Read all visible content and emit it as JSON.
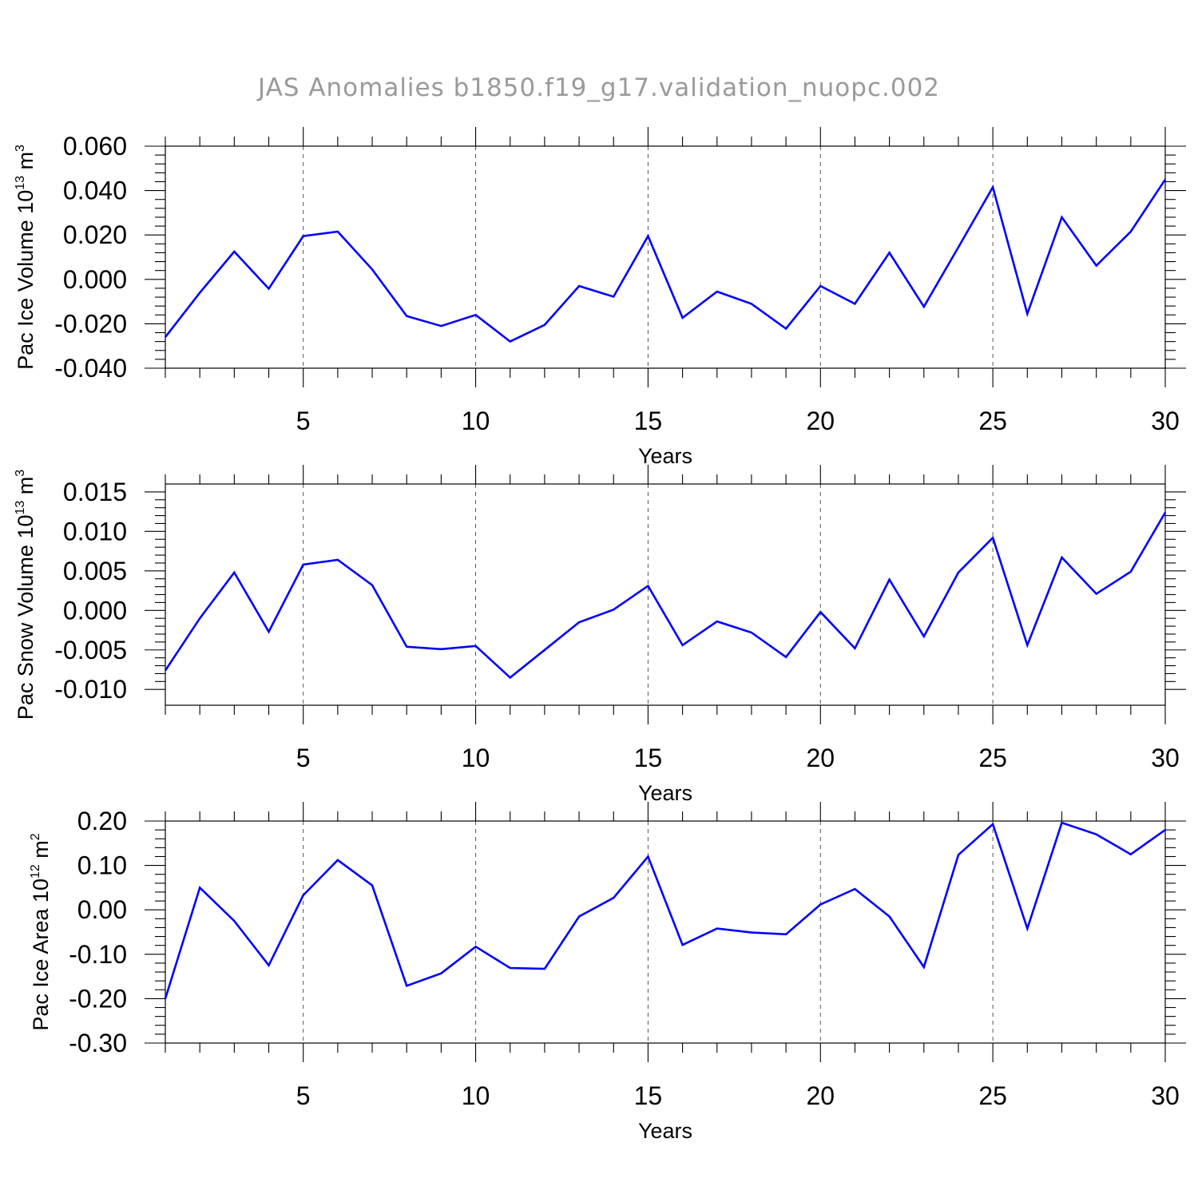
{
  "title": "JAS Anomalies b1850.f19_g17.validation_nuopc.002",
  "colors": {
    "series": "#0000ff",
    "axis": "#000000",
    "title": "#9a9a9a"
  },
  "chart_data": [
    {
      "type": "line",
      "xlabel": "Years",
      "ylabel": {
        "text": "Pac Ice Volume 10",
        "exp": "13",
        "unit": " m",
        "unit_exp": "3"
      },
      "xlim": [
        1,
        30
      ],
      "ylim": [
        -0.04,
        0.06
      ],
      "xticks": [
        5,
        10,
        15,
        20,
        25,
        30
      ],
      "xtick_labels": [
        "5",
        "10",
        "15",
        "20",
        "25",
        "30"
      ],
      "yticks": [
        -0.04,
        -0.02,
        0.0,
        0.02,
        0.04,
        0.06
      ],
      "ytick_labels": [
        "-0.040",
        "-0.020",
        "0.000",
        "0.020",
        "0.040",
        "0.060"
      ],
      "x": [
        1,
        2,
        3,
        4,
        5,
        6,
        7,
        8,
        9,
        10,
        11,
        12,
        13,
        14,
        15,
        16,
        17,
        18,
        19,
        20,
        21,
        22,
        23,
        24,
        25,
        26,
        27,
        28,
        29,
        30
      ],
      "series": [
        {
          "name": "Pac Ice Volume",
          "values": [
            -0.026,
            -0.006,
            0.0125,
            -0.0042,
            0.0195,
            0.0215,
            0.0045,
            -0.0165,
            -0.021,
            -0.016,
            -0.028,
            -0.0205,
            -0.003,
            -0.0078,
            0.0195,
            -0.0173,
            -0.0055,
            -0.011,
            -0.0222,
            -0.003,
            -0.011,
            0.012,
            -0.0123,
            0.0145,
            0.0415,
            -0.0155,
            0.028,
            0.0062,
            0.0215,
            0.045
          ]
        }
      ]
    },
    {
      "type": "line",
      "xlabel": "Years",
      "ylabel": {
        "text": "Pac Snow Volume 10",
        "exp": "13",
        "unit": " m",
        "unit_exp": "3"
      },
      "xlim": [
        1,
        30
      ],
      "ylim": [
        -0.012,
        0.016
      ],
      "xticks": [
        5,
        10,
        15,
        20,
        25,
        30
      ],
      "xtick_labels": [
        "5",
        "10",
        "15",
        "20",
        "25",
        "30"
      ],
      "yticks": [
        -0.01,
        -0.005,
        0.0,
        0.005,
        0.01,
        0.015
      ],
      "ytick_labels": [
        "-0.010",
        "-0.005",
        "0.000",
        "0.005",
        "0.010",
        "0.015"
      ],
      "x": [
        1,
        2,
        3,
        4,
        5,
        6,
        7,
        8,
        9,
        10,
        11,
        12,
        13,
        14,
        15,
        16,
        17,
        18,
        19,
        20,
        21,
        22,
        23,
        24,
        25,
        26,
        27,
        28,
        29,
        30
      ],
      "series": [
        {
          "name": "Pac Snow Volume",
          "values": [
            -0.0076,
            -0.001,
            0.0048,
            -0.0027,
            0.0058,
            0.0064,
            0.0032,
            -0.0046,
            -0.0049,
            -0.0045,
            -0.0085,
            -0.005,
            -0.0015,
            0.0001,
            0.0031,
            -0.0044,
            -0.0014,
            -0.0028,
            -0.0059,
            -0.0002,
            -0.0048,
            0.0039,
            -0.0033,
            0.0048,
            0.0092,
            -0.0044,
            0.0067,
            0.0021,
            0.0049,
            0.0124
          ]
        }
      ]
    },
    {
      "type": "line",
      "xlabel": "Years",
      "ylabel": {
        "text": "Pac Ice Area 10",
        "exp": "12",
        "unit": " m",
        "unit_exp": "2"
      },
      "xlim": [
        1,
        30
      ],
      "ylim": [
        -0.3,
        0.2
      ],
      "xticks": [
        5,
        10,
        15,
        20,
        25,
        30
      ],
      "xtick_labels": [
        "5",
        "10",
        "15",
        "20",
        "25",
        "30"
      ],
      "yticks": [
        -0.3,
        -0.2,
        -0.1,
        0.0,
        0.1,
        0.2
      ],
      "ytick_labels": [
        "-0.30",
        "-0.20",
        "-0.10",
        "0.00",
        "0.10",
        "0.20"
      ],
      "x": [
        1,
        2,
        3,
        4,
        5,
        6,
        7,
        8,
        9,
        10,
        11,
        12,
        13,
        14,
        15,
        16,
        17,
        18,
        19,
        20,
        21,
        22,
        23,
        24,
        25,
        26,
        27,
        28,
        29,
        30
      ],
      "series": [
        {
          "name": "Pac Ice Area",
          "values": [
            -0.2,
            0.05,
            -0.025,
            -0.125,
            0.033,
            0.112,
            0.055,
            -0.171,
            -0.143,
            -0.083,
            -0.131,
            -0.133,
            -0.015,
            0.027,
            0.12,
            -0.079,
            -0.042,
            -0.051,
            -0.055,
            0.012,
            0.047,
            -0.015,
            -0.129,
            0.124,
            0.193,
            -0.042,
            0.196,
            0.17,
            0.125,
            0.18
          ]
        }
      ]
    }
  ]
}
